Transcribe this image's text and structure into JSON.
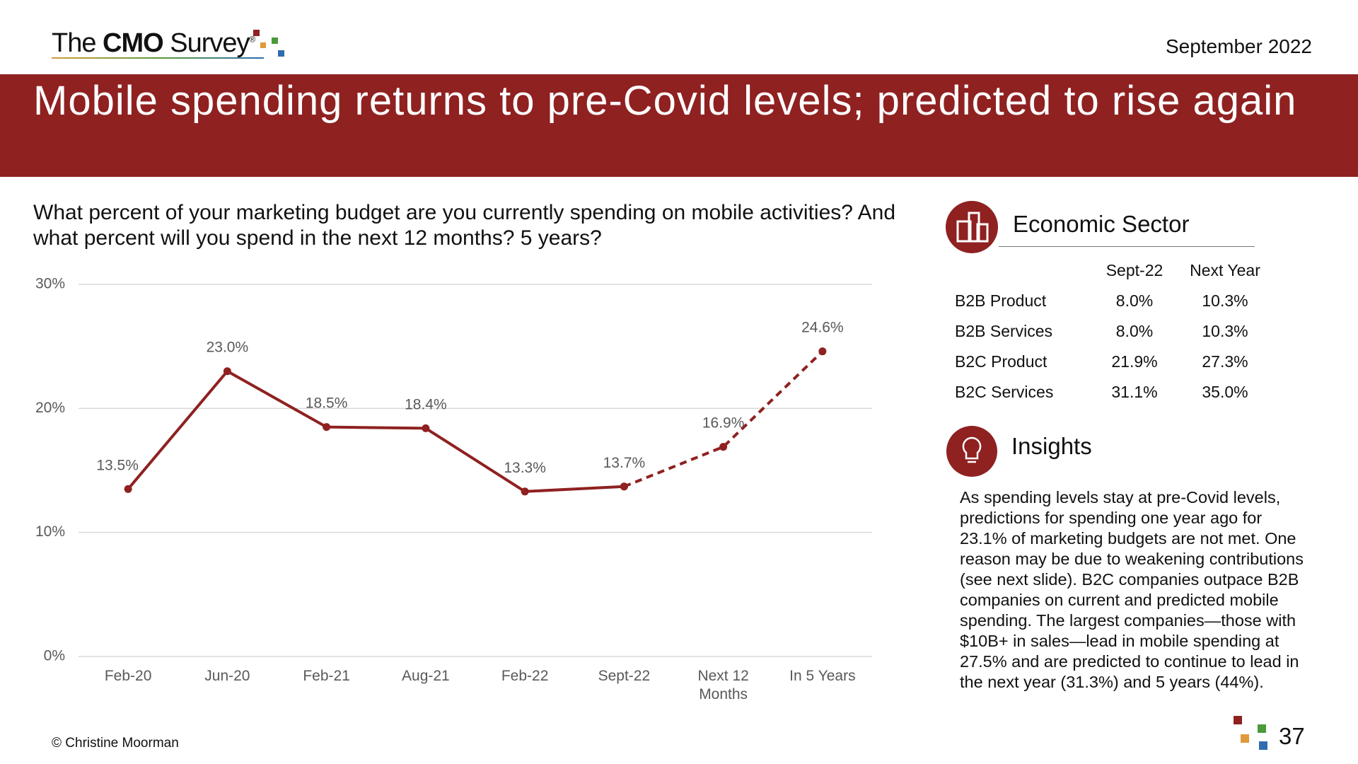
{
  "header": {
    "brand_pre": "The",
    "brand_bold": "CMO",
    "brand_post": "Survey",
    "brand_mark": "®",
    "date": "September 2022"
  },
  "chart_data": {
    "type": "line",
    "title": "Mobile spending returns to pre-Covid levels; predicted to rise again",
    "subtitle": "What percent of your marketing budget are you currently spending on mobile activities? And what percent will you spend in the next 12 months? 5 years?",
    "categories": [
      "Feb-20",
      "Jun-20",
      "Feb-21",
      "Aug-21",
      "Feb-22",
      "Sept-22",
      "Next 12 Months",
      "In 5 Years"
    ],
    "series": [
      {
        "color": "#8f2121",
        "dash": false,
        "values": [
          13.5,
          23.0,
          18.5,
          18.4,
          13.3,
          13.7,
          null,
          null
        ],
        "value_labels": [
          "13.5%",
          "23.0%",
          "18.5%",
          "18.4%",
          "13.3%",
          "13.7%",
          null,
          null
        ]
      },
      {
        "color": "#8f2121",
        "dash": true,
        "values": [
          null,
          null,
          null,
          null,
          null,
          13.7,
          16.9,
          24.6
        ],
        "value_labels": [
          null,
          null,
          null,
          null,
          null,
          null,
          "16.9%",
          "24.6%"
        ]
      }
    ],
    "ylim": [
      0,
      30
    ],
    "yticks": [
      {
        "value": 0,
        "label": "0%"
      },
      {
        "value": 10,
        "label": "10%"
      },
      {
        "value": 20,
        "label": "20%"
      },
      {
        "value": 30,
        "label": "30%"
      }
    ],
    "grid": true
  },
  "table": {
    "title": "Economic Sector",
    "columns": [
      "Sept-22",
      "Next Year"
    ],
    "rows": [
      [
        "B2B Product",
        "8.0%",
        "10.3%"
      ],
      [
        "B2B Services",
        "8.0%",
        "10.3%"
      ],
      [
        "B2C Product",
        "21.9%",
        "27.3%"
      ],
      [
        "B2C Services",
        "31.1%",
        "35.0%"
      ]
    ]
  },
  "insights": {
    "title": "Insights",
    "text": "As spending levels stay at pre-Covid levels, predictions for spending one year ago for 23.1% of marketing budgets are not met. One reason may be due to weakening contributions (see next slide). B2C companies outpace B2B companies on current and predicted mobile spending. The largest companies—those with $10B+ in sales—lead in mobile spending at 27.5% and are predicted to continue to lead in the next year (31.3%) and 5 years (44%)."
  },
  "footer": {
    "copyright": "© Christine Moorman",
    "page": "37"
  }
}
